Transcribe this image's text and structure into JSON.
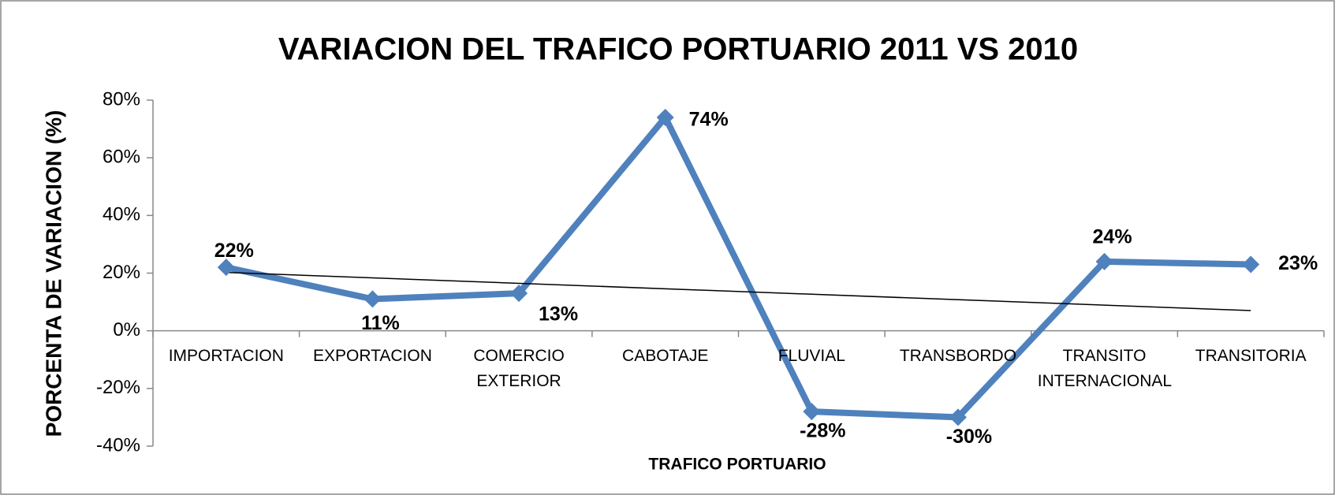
{
  "chart_data": {
    "type": "line",
    "title": "VARIACION DEL TRAFICO PORTUARIO 2011 VS 2010",
    "x_label": "TRAFICO PORTUARIO",
    "y_label": "PORCENTA DE  VARIACION (%)",
    "categories": [
      "IMPORTACION",
      "EXPORTACION",
      "COMERCIO EXTERIOR",
      "CABOTAJE",
      "FLUVIAL",
      "TRANSBORDO",
      "TRANSITO INTERNACIONAL",
      "TRANSITORIA"
    ],
    "series": [
      {
        "name": "VARIACION",
        "color": "#4f81bd",
        "values": [
          22,
          11,
          13,
          74,
          -28,
          -30,
          24,
          23
        ],
        "value_labels": [
          "22%",
          "11%",
          "13%",
          "74%",
          "-28%",
          "-30%",
          "24%",
          "23%"
        ]
      }
    ],
    "ylim": [
      -40,
      80
    ],
    "yticks": [
      {
        "value": -40,
        "label": "-40%"
      },
      {
        "value": -20,
        "label": "-20%"
      },
      {
        "value": 0,
        "label": "0%"
      },
      {
        "value": 20,
        "label": "20%"
      },
      {
        "value": 40,
        "label": "40%"
      },
      {
        "value": 60,
        "label": "60%"
      },
      {
        "value": 80,
        "label": "80%"
      }
    ],
    "trendline": "linear",
    "trendline_color": "#000000"
  }
}
